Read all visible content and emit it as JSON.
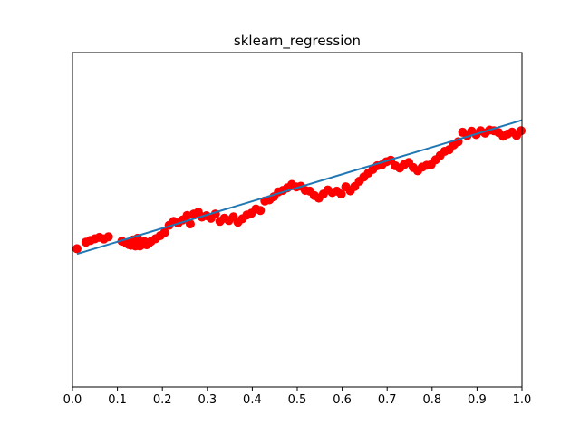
{
  "chart_data": {
    "type": "scatter",
    "title": "sklearn_regression",
    "xlabel": "",
    "ylabel": "",
    "xlim": [
      0.0,
      1.0
    ],
    "ylim": [
      -0.95,
      1.35
    ],
    "x_ticks": [
      "0.0",
      "0.1",
      "0.2",
      "0.3",
      "0.4",
      "0.5",
      "0.6",
      "0.7",
      "0.8",
      "0.9",
      "1.0"
    ],
    "y_ticks_visible": false,
    "grid": false,
    "colors": {
      "scatter": "#ff0000",
      "fit_line": "#1f77b4"
    },
    "series": [
      {
        "kind": "scatter",
        "points": [
          [
            0.01,
            0.001
          ],
          [
            0.03,
            0.046
          ],
          [
            0.04,
            0.058
          ],
          [
            0.05,
            0.069
          ],
          [
            0.06,
            0.079
          ],
          [
            0.07,
            0.068
          ],
          [
            0.08,
            0.083
          ],
          [
            0.11,
            0.053
          ],
          [
            0.12,
            0.04
          ],
          [
            0.125,
            0.03
          ],
          [
            0.13,
            0.025
          ],
          [
            0.135,
            0.061
          ],
          [
            0.14,
            0.02
          ],
          [
            0.145,
            0.073
          ],
          [
            0.15,
            0.02
          ],
          [
            0.155,
            0.03
          ],
          [
            0.16,
            0.05
          ],
          [
            0.165,
            0.028
          ],
          [
            0.17,
            0.04
          ],
          [
            0.175,
            0.052
          ],
          [
            0.185,
            0.07
          ],
          [
            0.195,
            0.09
          ],
          [
            0.205,
            0.112
          ],
          [
            0.215,
            0.162
          ],
          [
            0.225,
            0.189
          ],
          [
            0.235,
            0.178
          ],
          [
            0.245,
            0.199
          ],
          [
            0.255,
            0.23
          ],
          [
            0.262,
            0.171
          ],
          [
            0.27,
            0.24
          ],
          [
            0.28,
            0.252
          ],
          [
            0.288,
            0.219
          ],
          [
            0.298,
            0.228
          ],
          [
            0.308,
            0.21
          ],
          [
            0.318,
            0.24
          ],
          [
            0.328,
            0.189
          ],
          [
            0.338,
            0.211
          ],
          [
            0.348,
            0.195
          ],
          [
            0.358,
            0.22
          ],
          [
            0.368,
            0.183
          ],
          [
            0.378,
            0.207
          ],
          [
            0.388,
            0.233
          ],
          [
            0.398,
            0.245
          ],
          [
            0.408,
            0.274
          ],
          [
            0.418,
            0.264
          ],
          [
            0.428,
            0.329
          ],
          [
            0.438,
            0.337
          ],
          [
            0.448,
            0.358
          ],
          [
            0.458,
            0.392
          ],
          [
            0.468,
            0.402
          ],
          [
            0.478,
            0.42
          ],
          [
            0.488,
            0.443
          ],
          [
            0.498,
            0.426
          ],
          [
            0.508,
            0.431
          ],
          [
            0.518,
            0.402
          ],
          [
            0.528,
            0.397
          ],
          [
            0.538,
            0.367
          ],
          [
            0.548,
            0.349
          ],
          [
            0.558,
            0.377
          ],
          [
            0.568,
            0.405
          ],
          [
            0.578,
            0.387
          ],
          [
            0.588,
            0.397
          ],
          [
            0.598,
            0.377
          ],
          [
            0.608,
            0.427
          ],
          [
            0.618,
            0.399
          ],
          [
            0.628,
            0.429
          ],
          [
            0.638,
            0.465
          ],
          [
            0.648,
            0.494
          ],
          [
            0.658,
            0.521
          ],
          [
            0.668,
            0.546
          ],
          [
            0.678,
            0.572
          ],
          [
            0.688,
            0.577
          ],
          [
            0.698,
            0.599
          ],
          [
            0.708,
            0.61
          ],
          [
            0.718,
            0.572
          ],
          [
            0.728,
            0.556
          ],
          [
            0.738,
            0.58
          ],
          [
            0.748,
            0.594
          ],
          [
            0.758,
            0.56
          ],
          [
            0.768,
            0.537
          ],
          [
            0.778,
            0.562
          ],
          [
            0.788,
            0.575
          ],
          [
            0.798,
            0.58
          ],
          [
            0.808,
            0.613
          ],
          [
            0.818,
            0.642
          ],
          [
            0.828,
            0.671
          ],
          [
            0.838,
            0.682
          ],
          [
            0.848,
            0.715
          ],
          [
            0.858,
            0.737
          ],
          [
            0.868,
            0.802
          ],
          [
            0.878,
            0.779
          ],
          [
            0.888,
            0.809
          ],
          [
            0.898,
            0.786
          ],
          [
            0.908,
            0.812
          ],
          [
            0.918,
            0.796
          ],
          [
            0.928,
            0.817
          ],
          [
            0.938,
            0.812
          ],
          [
            0.948,
            0.8
          ],
          [
            0.958,
            0.775
          ],
          [
            0.968,
            0.79
          ],
          [
            0.978,
            0.803
          ],
          [
            0.988,
            0.78
          ],
          [
            0.998,
            0.812
          ]
        ]
      },
      {
        "kind": "line",
        "points": [
          [
            0.01,
            -0.035
          ],
          [
            1.0,
            0.885
          ]
        ]
      }
    ]
  }
}
